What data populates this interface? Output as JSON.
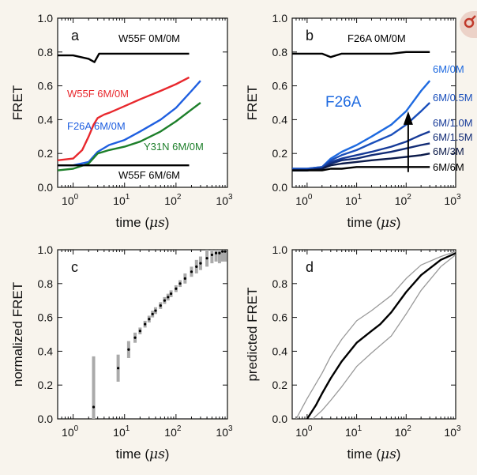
{
  "chart_data": [
    {
      "panel": "a",
      "type": "line",
      "xscale": "log",
      "xlim": [
        0.5,
        1000
      ],
      "ylim": [
        0.0,
        1.0
      ],
      "xticks": [
        "10^0",
        "10^1",
        "10^2",
        "10^3"
      ],
      "yticks": [
        "0.0",
        "0.2",
        "0.4",
        "0.6",
        "0.8",
        "1.0"
      ],
      "xlabel": "time (μs)",
      "ylabel": "FRET",
      "series": [
        {
          "name": "W55F 0M/0M",
          "color": "#000000",
          "x": [
            0.5,
            1,
            2,
            2.6,
            3.2,
            4,
            10,
            30,
            100,
            180
          ],
          "y": [
            0.78,
            0.78,
            0.76,
            0.74,
            0.79,
            0.79,
            0.79,
            0.79,
            0.79,
            0.79
          ]
        },
        {
          "name": "W55F 6M/0M",
          "color": "#e8282d",
          "x": [
            0.5,
            1,
            1.5,
            2,
            2.5,
            3,
            4,
            5,
            10,
            20,
            50,
            100,
            180
          ],
          "y": [
            0.16,
            0.17,
            0.22,
            0.3,
            0.37,
            0.41,
            0.43,
            0.44,
            0.48,
            0.52,
            0.57,
            0.61,
            0.65
          ]
        },
        {
          "name": "F26A 6M/0M",
          "color": "#1f5fe0",
          "x": [
            0.5,
            1,
            2,
            3,
            5,
            10,
            20,
            50,
            100,
            200,
            300
          ],
          "y": [
            0.13,
            0.13,
            0.15,
            0.21,
            0.25,
            0.28,
            0.33,
            0.4,
            0.47,
            0.57,
            0.63
          ]
        },
        {
          "name": "Y31N 6M/0M",
          "color": "#1d7f2a",
          "x": [
            0.5,
            1,
            2,
            3,
            5,
            10,
            20,
            50,
            100,
            200,
            300
          ],
          "y": [
            0.1,
            0.11,
            0.14,
            0.2,
            0.22,
            0.24,
            0.27,
            0.33,
            0.39,
            0.46,
            0.5
          ]
        },
        {
          "name": "W55F 6M/6M",
          "color": "#000000",
          "x": [
            0.5,
            1,
            2,
            5,
            10,
            50,
            100,
            180
          ],
          "y": [
            0.13,
            0.13,
            0.13,
            0.13,
            0.13,
            0.13,
            0.13,
            0.13
          ]
        }
      ],
      "annotations": [
        {
          "text": "W55F 0M/0M",
          "color": "#000000"
        },
        {
          "text": "W55F 6M/0M",
          "color": "#e8282d"
        },
        {
          "text": "F26A 6M/0M",
          "color": "#1f5fe0"
        },
        {
          "text": "Y31N 6M/0M",
          "color": "#1d7f2a"
        },
        {
          "text": "W55F 6M/6M",
          "color": "#000000"
        }
      ]
    },
    {
      "panel": "b",
      "type": "line",
      "xscale": "log",
      "xlim": [
        0.5,
        1000
      ],
      "ylim": [
        0.0,
        1.0
      ],
      "xticks": [
        "10^0",
        "10^1",
        "10^2",
        "10^3"
      ],
      "yticks": [
        "0.0",
        "0.2",
        "0.4",
        "0.6",
        "0.8",
        "1.0"
      ],
      "xlabel": "time (μs)",
      "ylabel": "FRET",
      "title_annotation": "F26A",
      "series": [
        {
          "name": "F26A 0M/0M",
          "color": "#000000",
          "x": [
            0.5,
            1,
            2,
            3,
            5,
            10,
            50,
            100,
            300
          ],
          "y": [
            0.79,
            0.79,
            0.79,
            0.77,
            0.79,
            0.79,
            0.79,
            0.8,
            0.8
          ]
        },
        {
          "name": "6M/0M",
          "color": "#1e6ae0",
          "x": [
            0.5,
            1,
            2,
            3,
            5,
            10,
            20,
            50,
            100,
            200,
            300
          ],
          "y": [
            0.11,
            0.11,
            0.12,
            0.17,
            0.21,
            0.25,
            0.3,
            0.37,
            0.45,
            0.57,
            0.63
          ]
        },
        {
          "name": "6M/0.5M",
          "color": "#1a4fbb",
          "x": [
            0.5,
            1,
            2,
            3,
            5,
            10,
            20,
            50,
            100,
            200,
            300
          ],
          "y": [
            0.11,
            0.11,
            0.12,
            0.16,
            0.19,
            0.22,
            0.26,
            0.31,
            0.37,
            0.45,
            0.5
          ]
        },
        {
          "name": "6M/1.0M",
          "color": "#163a98",
          "x": [
            0.5,
            1,
            2,
            3,
            5,
            10,
            20,
            50,
            100,
            200,
            300
          ],
          "y": [
            0.1,
            0.1,
            0.11,
            0.15,
            0.17,
            0.19,
            0.21,
            0.24,
            0.27,
            0.31,
            0.33
          ]
        },
        {
          "name": "6M/1.5M",
          "color": "#112b75",
          "x": [
            0.5,
            1,
            2,
            3,
            5,
            10,
            20,
            50,
            100,
            200,
            300
          ],
          "y": [
            0.1,
            0.1,
            0.11,
            0.14,
            0.16,
            0.17,
            0.19,
            0.21,
            0.23,
            0.25,
            0.26
          ]
        },
        {
          "name": "6M/3M",
          "color": "#0b1a4a",
          "x": [
            0.5,
            1,
            2,
            3,
            5,
            10,
            20,
            50,
            100,
            200,
            300
          ],
          "y": [
            0.1,
            0.1,
            0.11,
            0.13,
            0.14,
            0.15,
            0.16,
            0.17,
            0.18,
            0.19,
            0.2
          ]
        },
        {
          "name": "6M/6M",
          "color": "#000000",
          "x": [
            0.5,
            1,
            2,
            3,
            5,
            10,
            20,
            50,
            100,
            200,
            300
          ],
          "y": [
            0.1,
            0.1,
            0.1,
            0.11,
            0.11,
            0.12,
            0.12,
            0.12,
            0.12,
            0.12,
            0.12
          ]
        }
      ],
      "annotations": [
        {
          "text": "F26A 0M/0M",
          "color": "#000000"
        },
        {
          "text": "F26A",
          "color": "#1e6ae0"
        },
        {
          "text": "6M/0M",
          "color": "#1e6ae0"
        },
        {
          "text": "6M/0.5M",
          "color": "#1a4fbb"
        },
        {
          "text": "6M/1.0M",
          "color": "#163a98"
        },
        {
          "text": "6M/1.5M",
          "color": "#112b75"
        },
        {
          "text": "6M/3M",
          "color": "#0b1a4a"
        },
        {
          "text": "6M/6M",
          "color": "#000000"
        }
      ]
    },
    {
      "panel": "c",
      "type": "scatter",
      "xscale": "log",
      "xlim": [
        0.5,
        1000
      ],
      "ylim": [
        0.0,
        1.0
      ],
      "xticks": [
        "10^0",
        "10^1",
        "10^2",
        "10^3"
      ],
      "yticks": [
        "0.0",
        "0.2",
        "0.4",
        "0.6",
        "0.8",
        "1.0"
      ],
      "xlabel": "time (μs)",
      "ylabel": "normalized FRET",
      "points": [
        {
          "x": 2.5,
          "y": 0.07,
          "err": 0.3
        },
        {
          "x": 7.5,
          "y": 0.3,
          "err": 0.08
        },
        {
          "x": 12,
          "y": 0.41,
          "err": 0.05
        },
        {
          "x": 16,
          "y": 0.48,
          "err": 0.03
        },
        {
          "x": 20,
          "y": 0.52,
          "err": 0.02
        },
        {
          "x": 25,
          "y": 0.56,
          "err": 0.02
        },
        {
          "x": 30,
          "y": 0.59,
          "err": 0.02
        },
        {
          "x": 35,
          "y": 0.62,
          "err": 0.02
        },
        {
          "x": 40,
          "y": 0.64,
          "err": 0.02
        },
        {
          "x": 50,
          "y": 0.67,
          "err": 0.02
        },
        {
          "x": 60,
          "y": 0.7,
          "err": 0.02
        },
        {
          "x": 70,
          "y": 0.72,
          "err": 0.02
        },
        {
          "x": 80,
          "y": 0.74,
          "err": 0.02
        },
        {
          "x": 100,
          "y": 0.77,
          "err": 0.02
        },
        {
          "x": 120,
          "y": 0.8,
          "err": 0.02
        },
        {
          "x": 150,
          "y": 0.83,
          "err": 0.03
        },
        {
          "x": 200,
          "y": 0.87,
          "err": 0.03
        },
        {
          "x": 250,
          "y": 0.9,
          "err": 0.04
        },
        {
          "x": 300,
          "y": 0.92,
          "err": 0.04
        },
        {
          "x": 400,
          "y": 0.95,
          "err": 0.05
        },
        {
          "x": 500,
          "y": 0.97,
          "err": 0.05
        },
        {
          "x": 600,
          "y": 0.98,
          "err": 0.05
        },
        {
          "x": 700,
          "y": 0.98,
          "err": 0.06
        },
        {
          "x": 800,
          "y": 0.99,
          "err": 0.06
        },
        {
          "x": 900,
          "y": 0.99,
          "err": 0.06
        }
      ]
    },
    {
      "panel": "d",
      "type": "line",
      "xscale": "log",
      "xlim": [
        0.5,
        1000
      ],
      "ylim": [
        0.0,
        1.0
      ],
      "xticks": [
        "10^0",
        "10^1",
        "10^2",
        "10^3"
      ],
      "yticks": [
        "0.0",
        "0.2",
        "0.4",
        "0.6",
        "0.8",
        "1.0"
      ],
      "xlabel": "time (μs)",
      "ylabel": "predicted FRET",
      "series": [
        {
          "name": "",
          "color": "#000000",
          "x": [
            1.0,
            1.5,
            2,
            3,
            5,
            10,
            20,
            30,
            50,
            100,
            200,
            500,
            1000
          ],
          "y": [
            0.0,
            0.08,
            0.15,
            0.24,
            0.34,
            0.45,
            0.52,
            0.56,
            0.63,
            0.75,
            0.85,
            0.94,
            0.98
          ]
        },
        {
          "name": "",
          "color": "#999999",
          "x": [
            0.6,
            1,
            2,
            3,
            5,
            10,
            20,
            50,
            100,
            200,
            500,
            1000
          ],
          "y": [
            0.0,
            0.12,
            0.27,
            0.37,
            0.47,
            0.58,
            0.64,
            0.73,
            0.83,
            0.91,
            0.96,
            0.99
          ]
        },
        {
          "name": "",
          "color": "#999999",
          "x": [
            1.3,
            2,
            3,
            5,
            10,
            20,
            50,
            100,
            200,
            500,
            1000
          ],
          "y": [
            0.0,
            0.05,
            0.11,
            0.19,
            0.31,
            0.39,
            0.49,
            0.62,
            0.76,
            0.9,
            0.97
          ]
        }
      ]
    }
  ],
  "panel_labels": [
    "a",
    "b",
    "c",
    "d"
  ],
  "x_tick_base": "10",
  "x_tick_exponents": [
    "0",
    "1",
    "2",
    "3"
  ],
  "x_axis_word": "time",
  "x_axis_unit": "μs",
  "colors": {
    "background": "#f8f4ed",
    "corner_badge": "#ecd2c8"
  },
  "corner_icon": "female-symbol-icon"
}
